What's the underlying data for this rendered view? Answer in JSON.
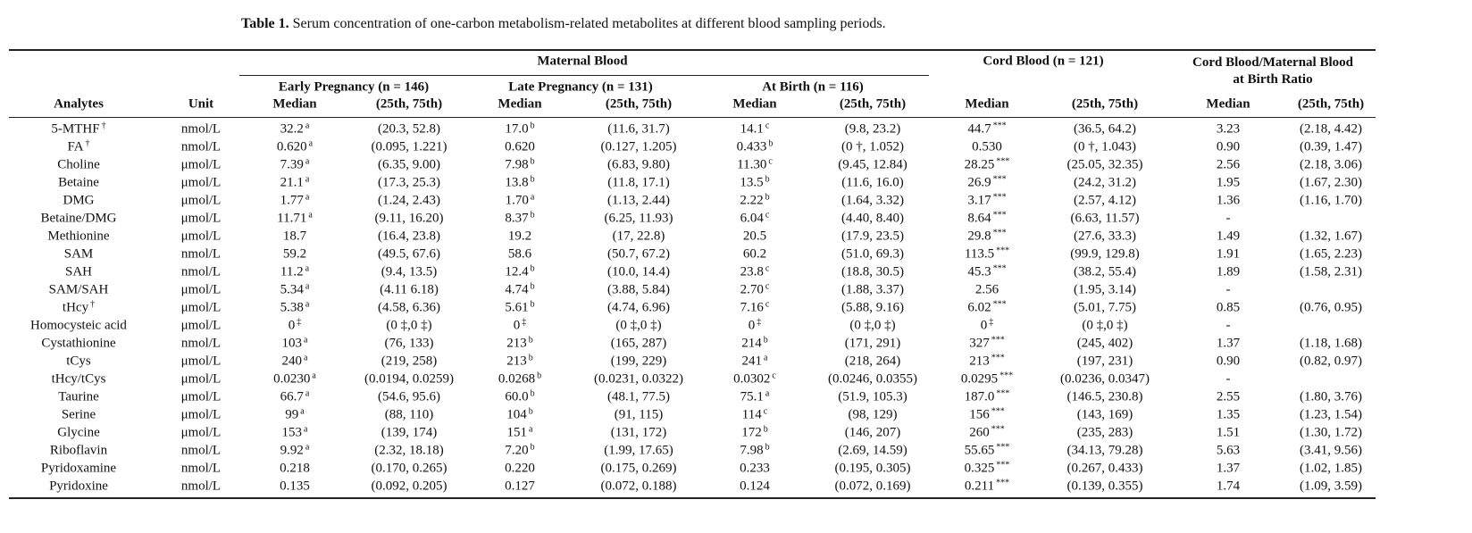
{
  "caption": {
    "label": "Table 1.",
    "text": "Serum concentration of one-carbon metabolism-related metabolites at different blood sampling periods."
  },
  "header": {
    "groups": [
      "Maternal Blood",
      "Cord Blood (n = 121)",
      "Cord Blood/Maternal Blood at Birth Ratio"
    ],
    "subgroups": [
      "Early Pregnancy (n = 146)",
      "Late Pregnancy (n = 131)",
      "At Birth (n = 116)"
    ],
    "columns": [
      "Analytes",
      "Unit",
      "Median",
      "(25th, 75th)",
      "Median",
      "(25th, 75th)",
      "Median",
      "(25th, 75th)",
      "Median",
      "(25th, 75th)",
      "Median",
      "(25th, 75th)"
    ]
  },
  "rows": [
    [
      {
        "text": "5-MTHF",
        "sup": "†"
      },
      "nmol/L",
      {
        "text": "32.2",
        "sup": "a"
      },
      "(20.3, 52.8)",
      {
        "text": "17.0",
        "sup": "b"
      },
      "(11.6, 31.7)",
      {
        "text": "14.1",
        "sup": "c"
      },
      "(9.8, 23.2)",
      {
        "text": "44.7",
        "sup": "***"
      },
      "(36.5, 64.2)",
      "3.23",
      "(2.18, 4.42)"
    ],
    [
      {
        "text": "FA",
        "sup": "†"
      },
      "nmol/L",
      {
        "text": "0.620",
        "sup": "a"
      },
      "(0.095, 1.221)",
      "0.620",
      "(0.127, 1.205)",
      {
        "text": "0.433",
        "sup": "b"
      },
      "(0 †, 1.052)",
      "0.530",
      "(0 †, 1.043)",
      "0.90",
      "(0.39, 1.47)"
    ],
    [
      "Choline",
      "μmol/L",
      {
        "text": "7.39",
        "sup": "a"
      },
      "(6.35, 9.00)",
      {
        "text": "7.98",
        "sup": "b"
      },
      "(6.83, 9.80)",
      {
        "text": "11.30",
        "sup": "c"
      },
      "(9.45, 12.84)",
      {
        "text": "28.25",
        "sup": "***"
      },
      "(25.05, 32.35)",
      "2.56",
      "(2.18, 3.06)"
    ],
    [
      "Betaine",
      "μmol/L",
      {
        "text": "21.1",
        "sup": "a"
      },
      "(17.3, 25.3)",
      {
        "text": "13.8",
        "sup": "b"
      },
      "(11.8, 17.1)",
      {
        "text": "13.5",
        "sup": "b"
      },
      "(11.6, 16.0)",
      {
        "text": "26.9",
        "sup": "***"
      },
      "(24.2, 31.2)",
      "1.95",
      "(1.67, 2.30)"
    ],
    [
      "DMG",
      "μmol/L",
      {
        "text": "1.77",
        "sup": "a"
      },
      "(1.24, 2.43)",
      {
        "text": "1.70",
        "sup": "a"
      },
      "(1.13, 2.44)",
      {
        "text": "2.22",
        "sup": "b"
      },
      "(1.64, 3.32)",
      {
        "text": "3.17",
        "sup": "***"
      },
      "(2.57, 4.12)",
      "1.36",
      "(1.16, 1.70)"
    ],
    [
      "Betaine/DMG",
      "μmol/L",
      {
        "text": "11.71",
        "sup": "a"
      },
      "(9.11, 16.20)",
      {
        "text": "8.37",
        "sup": "b"
      },
      "(6.25, 11.93)",
      {
        "text": "6.04",
        "sup": "c"
      },
      "(4.40, 8.40)",
      {
        "text": "8.64",
        "sup": "***"
      },
      "(6.63, 11.57)",
      "-",
      null
    ],
    [
      "Methionine",
      "μmol/L",
      "18.7",
      "(16.4, 23.8)",
      "19.2",
      "(17, 22.8)",
      "20.5",
      "(17.9, 23.5)",
      {
        "text": "29.8",
        "sup": "***"
      },
      "(27.6, 33.3)",
      "1.49",
      "(1.32, 1.67)"
    ],
    [
      "SAM",
      "nmol/L",
      "59.2",
      "(49.5, 67.6)",
      "58.6",
      "(50.7, 67.2)",
      "60.2",
      "(51.0, 69.3)",
      {
        "text": "113.5",
        "sup": "***"
      },
      "(99.9, 129.8)",
      "1.91",
      "(1.65, 2.23)"
    ],
    [
      "SAH",
      "nmol/L",
      {
        "text": "11.2",
        "sup": "a"
      },
      "(9.4, 13.5)",
      {
        "text": "12.4",
        "sup": "b"
      },
      "(10.0, 14.4)",
      {
        "text": "23.8",
        "sup": "c"
      },
      "(18.8, 30.5)",
      {
        "text": "45.3",
        "sup": "***"
      },
      "(38.2, 55.4)",
      "1.89",
      "(1.58, 2.31)"
    ],
    [
      "SAM/SAH",
      "μmol/L",
      {
        "text": "5.34",
        "sup": "a"
      },
      "(4.11 6.18)",
      {
        "text": "4.74",
        "sup": "b"
      },
      "(3.88, 5.84)",
      {
        "text": "2.70",
        "sup": "c"
      },
      "(1.88, 3.37)",
      "2.56",
      "(1.95, 3.14)",
      "-",
      null
    ],
    [
      {
        "text": "tHcy",
        "sup": "†"
      },
      "μmol/L",
      {
        "text": "5.38",
        "sup": "a"
      },
      "(4.58, 6.36)",
      {
        "text": "5.61",
        "sup": "b"
      },
      "(4.74, 6.96)",
      {
        "text": "7.16",
        "sup": "c"
      },
      "(5.88, 9.16)",
      {
        "text": "6.02",
        "sup": "***"
      },
      "(5.01, 7.75)",
      "0.85",
      "(0.76, 0.95)"
    ],
    [
      "Homocysteic acid",
      "μmol/L",
      {
        "text": "0",
        "sup": "‡"
      },
      "(0 ‡,0 ‡)",
      {
        "text": "0",
        "sup": "‡"
      },
      "(0 ‡,0 ‡)",
      {
        "text": "0",
        "sup": "‡"
      },
      "(0 ‡,0 ‡)",
      {
        "text": "0",
        "sup": "‡"
      },
      "(0 ‡,0 ‡)",
      "-",
      null
    ],
    [
      "Cystathionine",
      "nmol/L",
      {
        "text": "103",
        "sup": "a"
      },
      "(76, 133)",
      {
        "text": "213",
        "sup": "b"
      },
      "(165, 287)",
      {
        "text": "214",
        "sup": "b"
      },
      "(171, 291)",
      {
        "text": "327",
        "sup": "***"
      },
      "(245, 402)",
      "1.37",
      "(1.18, 1.68)"
    ],
    [
      "tCys",
      "μmol/L",
      {
        "text": "240",
        "sup": "a"
      },
      "(219, 258)",
      {
        "text": "213",
        "sup": "b"
      },
      "(199, 229)",
      {
        "text": "241",
        "sup": "a"
      },
      "(218, 264)",
      {
        "text": "213",
        "sup": "***"
      },
      "(197, 231)",
      "0.90",
      "(0.82, 0.97)"
    ],
    [
      "tHcy/tCys",
      "μmol/L",
      {
        "text": "0.0230",
        "sup": "a"
      },
      "(0.0194, 0.0259)",
      {
        "text": "0.0268",
        "sup": "b"
      },
      "(0.0231, 0.0322)",
      {
        "text": "0.0302",
        "sup": "c"
      },
      "(0.0246, 0.0355)",
      {
        "text": "0.0295",
        "sup": "***"
      },
      "(0.0236, 0.0347)",
      "-",
      null
    ],
    [
      "Taurine",
      "μmol/L",
      {
        "text": "66.7",
        "sup": "a"
      },
      "(54.6, 95.6)",
      {
        "text": "60.0",
        "sup": "b"
      },
      "(48.1, 77.5)",
      {
        "text": "75.1",
        "sup": "a"
      },
      "(51.9, 105.3)",
      {
        "text": "187.0",
        "sup": "***"
      },
      "(146.5, 230.8)",
      "2.55",
      "(1.80, 3.76)"
    ],
    [
      "Serine",
      "μmol/L",
      {
        "text": "99",
        "sup": "a"
      },
      "(88, 110)",
      {
        "text": "104",
        "sup": "b"
      },
      "(91, 115)",
      {
        "text": "114",
        "sup": "c"
      },
      "(98, 129)",
      {
        "text": "156",
        "sup": "***"
      },
      "(143, 169)",
      "1.35",
      "(1.23, 1.54)"
    ],
    [
      "Glycine",
      "μmol/L",
      {
        "text": "153",
        "sup": "a"
      },
      "(139, 174)",
      {
        "text": "151",
        "sup": "a"
      },
      "(131, 172)",
      {
        "text": "172",
        "sup": "b"
      },
      "(146, 207)",
      {
        "text": "260",
        "sup": "***"
      },
      "(235, 283)",
      "1.51",
      "(1.30, 1.72)"
    ],
    [
      "Riboflavin",
      "nmol/L",
      {
        "text": "9.92",
        "sup": "a"
      },
      "(2.32, 18.18)",
      {
        "text": "7.20",
        "sup": "b"
      },
      "(1.99, 17.65)",
      {
        "text": "7.98",
        "sup": "b"
      },
      "(2.69, 14.59)",
      {
        "text": "55.65",
        "sup": "***"
      },
      "(34.13, 79.28)",
      "5.63",
      "(3.41, 9.56)"
    ],
    [
      "Pyridoxamine",
      "nmol/L",
      "0.218",
      "(0.170, 0.265)",
      "0.220",
      "(0.175, 0.269)",
      "0.233",
      "(0.195, 0.305)",
      {
        "text": "0.325",
        "sup": "***"
      },
      "(0.267, 0.433)",
      "1.37",
      "(1.02, 1.85)"
    ],
    [
      "Pyridoxine",
      "nmol/L",
      "0.135",
      "(0.092, 0.205)",
      "0.127",
      "(0.072, 0.188)",
      "0.124",
      "(0.072, 0.169)",
      {
        "text": "0.211",
        "sup": "***"
      },
      "(0.139, 0.355)",
      "1.74",
      "(1.09, 3.59)"
    ]
  ]
}
